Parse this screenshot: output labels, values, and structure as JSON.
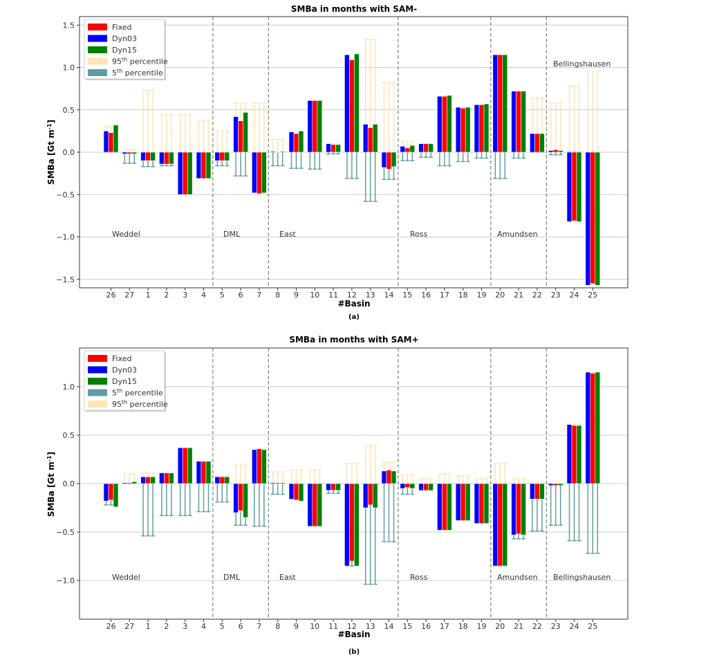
{
  "panels": [
    {
      "title": "SMBa in months with SAM-",
      "caption": "(a)",
      "ylabel": "SMBa [Gt m",
      "ylabel_sup": "-1",
      "ylabel_end": "]",
      "xlabel": "#Basin",
      "legend": [
        {
          "label": "Fixed",
          "sup": ""
        },
        {
          "label": "Dyn03",
          "sup": ""
        },
        {
          "label": "Dyn15",
          "sup": ""
        },
        {
          "label": "95",
          "sup": "th",
          "suffix": " percentile"
        },
        {
          "label": "5",
          "sup": "th",
          "suffix": " percentile"
        }
      ],
      "regions": [
        "Weddel",
        "DML",
        "East",
        "Ross",
        "Amundsen",
        "Bellingshausen"
      ],
      "yticks": [
        "1.5",
        "1.0",
        "0.5",
        "0.0",
        "−0.5",
        "−1.0",
        "−1.5"
      ]
    },
    {
      "title": "SMBa in months with SAM+",
      "caption": "(b)",
      "ylabel": "SMBa [Gt m",
      "ylabel_sup": "-1",
      "ylabel_end": "]",
      "xlabel": "#Basin",
      "legend": [
        {
          "label": "Fixed",
          "sup": ""
        },
        {
          "label": "Dyn03",
          "sup": ""
        },
        {
          "label": "Dyn15",
          "sup": ""
        },
        {
          "label": "5",
          "sup": "th",
          "suffix": " percentile"
        },
        {
          "label": "95",
          "sup": "th",
          "suffix": " percentile"
        }
      ],
      "regions": [
        "Weddel",
        "DML",
        "East",
        "Ross",
        "Amundsen",
        "Bellingshausen"
      ],
      "yticks": [
        "1.0",
        "0.5",
        "0.0",
        "−0.5",
        "−1.0"
      ]
    }
  ],
  "colors": {
    "fixed": "#ff0000",
    "dyn03": "#0000ff",
    "dyn15": "#008000",
    "p95": "#ffe4b5",
    "p5": "#5f9ea0",
    "grid": "#cccccc",
    "separator": "#666666"
  },
  "chart_data": [
    {
      "type": "bar",
      "title": "SMBa in months with SAM-",
      "xlabel": "#Basin",
      "ylabel": "SMBa [Gt m-1]",
      "ylim": [
        -1.6,
        1.6
      ],
      "categories": [
        "26",
        "27",
        "1",
        "2",
        "3",
        "4",
        "5",
        "6",
        "7",
        "8",
        "9",
        "10",
        "11",
        "12",
        "13",
        "14",
        "15",
        "16",
        "17",
        "18",
        "19",
        "20",
        "21",
        "22",
        "23",
        "24",
        "25"
      ],
      "regions": [
        {
          "name": "Weddel",
          "basins": [
            "26",
            "27",
            "1",
            "2",
            "3",
            "4"
          ]
        },
        {
          "name": "DML",
          "basins": [
            "5",
            "6",
            "7"
          ]
        },
        {
          "name": "East",
          "basins": [
            "8",
            "9",
            "10",
            "11",
            "12",
            "13",
            "14"
          ]
        },
        {
          "name": "Ross",
          "basins": [
            "15",
            "16",
            "17",
            "18",
            "19"
          ]
        },
        {
          "name": "Amundsen",
          "basins": [
            "20",
            "21",
            "22"
          ]
        },
        {
          "name": "Bellingshausen",
          "basins": [
            "23",
            "24",
            "25"
          ]
        }
      ],
      "series": [
        {
          "name": "Dyn03",
          "values": [
            0.25,
            -0.02,
            -0.1,
            -0.14,
            -0.5,
            -0.31,
            -0.1,
            0.42,
            -0.48,
            0.01,
            0.24,
            0.61,
            0.1,
            1.15,
            0.33,
            -0.18,
            0.07,
            0.1,
            0.66,
            0.53,
            0.56,
            1.15,
            0.72,
            0.22,
            0.02,
            -0.82,
            -1.57
          ]
        },
        {
          "name": "Fixed",
          "values": [
            0.23,
            -0.02,
            -0.1,
            -0.14,
            -0.5,
            -0.31,
            -0.1,
            0.37,
            -0.49,
            0.0,
            0.22,
            0.61,
            0.09,
            1.09,
            0.29,
            -0.2,
            0.05,
            0.1,
            0.66,
            0.52,
            0.56,
            1.15,
            0.72,
            0.22,
            0.03,
            -0.81,
            -1.55
          ]
        },
        {
          "name": "Dyn15",
          "values": [
            0.32,
            -0.02,
            -0.1,
            -0.14,
            -0.5,
            -0.31,
            -0.1,
            0.47,
            -0.48,
            0.01,
            0.25,
            0.61,
            0.09,
            1.16,
            0.33,
            -0.17,
            0.08,
            0.1,
            0.67,
            0.53,
            0.57,
            1.15,
            0.72,
            0.22,
            0.02,
            -0.82,
            -1.57
          ]
        },
        {
          "name": "95th percentile",
          "values": [
            0.3,
            0.03,
            0.73,
            0.44,
            0.44,
            0.37,
            0.25,
            0.58,
            0.58,
            0.15,
            0.18,
            0.6,
            0.1,
            1.02,
            1.33,
            0.82,
            0.13,
            0.1,
            0.66,
            0.52,
            0.56,
            1.15,
            0.72,
            0.64,
            0.58,
            0.78,
            0.95
          ]
        },
        {
          "name": "5th percentile",
          "values": [
            0.0,
            -0.13,
            -0.17,
            -0.16,
            -0.2,
            -0.2,
            -0.16,
            -0.28,
            -0.2,
            -0.16,
            -0.19,
            -0.2,
            -0.02,
            -0.31,
            -0.58,
            -0.32,
            -0.1,
            -0.06,
            -0.16,
            -0.11,
            -0.07,
            -0.31,
            -0.07,
            0.0,
            -0.03,
            0.0,
            -0.15
          ]
        }
      ]
    },
    {
      "type": "bar",
      "title": "SMBa in months with SAM+",
      "xlabel": "#Basin",
      "ylabel": "SMBa [Gt m-1]",
      "ylim": [
        -1.4,
        1.4
      ],
      "categories": [
        "26",
        "27",
        "1",
        "2",
        "3",
        "4",
        "5",
        "6",
        "7",
        "8",
        "9",
        "10",
        "11",
        "12",
        "13",
        "14",
        "15",
        "16",
        "17",
        "18",
        "19",
        "20",
        "21",
        "22",
        "23",
        "24",
        "25"
      ],
      "regions": [
        {
          "name": "Weddel",
          "basins": [
            "26",
            "27",
            "1",
            "2",
            "3",
            "4"
          ]
        },
        {
          "name": "DML",
          "basins": [
            "5",
            "6",
            "7"
          ]
        },
        {
          "name": "East",
          "basins": [
            "8",
            "9",
            "10",
            "11",
            "12",
            "13",
            "14"
          ]
        },
        {
          "name": "Ross",
          "basins": [
            "15",
            "16",
            "17",
            "18",
            "19"
          ]
        },
        {
          "name": "Amundsen",
          "basins": [
            "20",
            "21",
            "22"
          ]
        },
        {
          "name": "Bellingshausen",
          "basins": [
            "23",
            "24",
            "25"
          ]
        }
      ],
      "series": [
        {
          "name": "Dyn03",
          "values": [
            -0.18,
            0.01,
            0.07,
            0.11,
            0.37,
            0.23,
            0.07,
            -0.3,
            0.35,
            0.01,
            -0.16,
            -0.44,
            -0.07,
            -0.85,
            -0.25,
            0.13,
            -0.05,
            -0.07,
            -0.48,
            -0.38,
            -0.41,
            -0.85,
            -0.53,
            -0.16,
            -0.02,
            0.61,
            1.15
          ]
        },
        {
          "name": "Fixed",
          "values": [
            -0.17,
            0.01,
            0.07,
            0.11,
            0.37,
            0.23,
            0.07,
            -0.28,
            0.36,
            0.01,
            -0.17,
            -0.44,
            -0.07,
            -0.8,
            -0.22,
            0.14,
            -0.04,
            -0.07,
            -0.48,
            -0.38,
            -0.41,
            -0.85,
            -0.52,
            -0.16,
            -0.02,
            0.6,
            1.14
          ]
        },
        {
          "name": "Dyn15",
          "values": [
            -0.24,
            0.02,
            0.07,
            0.11,
            0.37,
            0.23,
            0.07,
            -0.35,
            0.35,
            0.01,
            -0.18,
            -0.44,
            -0.07,
            -0.85,
            -0.25,
            0.13,
            -0.05,
            -0.07,
            -0.48,
            -0.38,
            -0.41,
            -0.85,
            -0.53,
            -0.16,
            -0.02,
            0.6,
            1.15
          ]
        },
        {
          "name": "5th percentile",
          "values": [
            -0.22,
            0.0,
            -0.54,
            -0.33,
            -0.33,
            -0.29,
            -0.19,
            -0.43,
            -0.44,
            -0.11,
            -0.16,
            -0.44,
            -0.1,
            -0.85,
            -1.04,
            -0.6,
            -0.11,
            -0.07,
            -0.48,
            -0.38,
            -0.41,
            -0.85,
            -0.57,
            -0.49,
            -0.43,
            -0.59,
            -0.72
          ]
        },
        {
          "name": "95th percentile",
          "values": [
            0.0,
            0.1,
            0.11,
            0.11,
            0.37,
            0.23,
            0.08,
            0.2,
            0.35,
            0.12,
            0.14,
            0.14,
            0.0,
            0.21,
            0.4,
            0.22,
            0.09,
            0.05,
            0.1,
            0.08,
            0.05,
            0.21,
            0.05,
            0.0,
            0.0,
            0.61,
            1.15
          ]
        }
      ]
    }
  ]
}
